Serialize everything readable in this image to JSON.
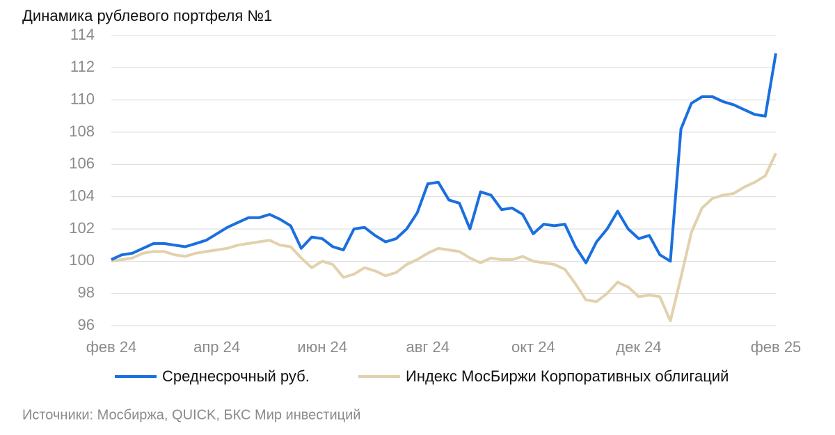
{
  "chart_data": {
    "type": "line",
    "title": "Динамика рублевого портфеля №1",
    "source": "Источники: Мосбиржа, QUICK, БКС Мир инвестиций",
    "categories": [
      "фев 24",
      null,
      null,
      null,
      null,
      null,
      null,
      null,
      null,
      null,
      "апр 24",
      null,
      null,
      null,
      null,
      null,
      null,
      null,
      null,
      null,
      "июн 24",
      null,
      null,
      null,
      null,
      null,
      null,
      null,
      null,
      null,
      "авг 24",
      null,
      null,
      null,
      null,
      null,
      null,
      null,
      null,
      null,
      "окт 24",
      null,
      null,
      null,
      null,
      null,
      null,
      null,
      null,
      null,
      "дек 24",
      null,
      null,
      null,
      null,
      null,
      null,
      null,
      null,
      null,
      null,
      null,
      null,
      "фев 25"
    ],
    "series": [
      {
        "name": "Среднесрочный руб.",
        "color": "#1a6fdf",
        "values": [
          100.1,
          100.4,
          100.5,
          100.8,
          101.1,
          101.1,
          101.0,
          100.9,
          101.1,
          101.3,
          101.7,
          102.1,
          102.4,
          102.7,
          102.7,
          102.9,
          102.6,
          102.2,
          100.8,
          101.5,
          101.4,
          100.9,
          100.7,
          102.0,
          102.1,
          101.6,
          101.2,
          101.4,
          102.0,
          103.0,
          104.8,
          104.9,
          103.8,
          103.6,
          102.0,
          104.3,
          104.1,
          103.2,
          103.3,
          102.9,
          101.7,
          102.3,
          102.2,
          102.3,
          100.9,
          99.9,
          101.2,
          102.0,
          103.1,
          102.0,
          101.4,
          101.6,
          100.4,
          100.0,
          108.2,
          109.8,
          110.2,
          110.2,
          109.9,
          109.7,
          109.4,
          109.1,
          109.0,
          112.9
        ]
      },
      {
        "name": "Индекс МосБиржи Корпоративных облигаций",
        "color": "#e2d1ad",
        "values": [
          100.0,
          100.1,
          100.2,
          100.5,
          100.6,
          100.6,
          100.4,
          100.3,
          100.5,
          100.6,
          100.7,
          100.8,
          101.0,
          101.1,
          101.2,
          101.3,
          101.0,
          100.9,
          100.2,
          99.6,
          100.0,
          99.8,
          99.0,
          99.2,
          99.6,
          99.4,
          99.1,
          99.3,
          99.8,
          100.1,
          100.5,
          100.8,
          100.7,
          100.6,
          100.2,
          99.9,
          100.2,
          100.1,
          100.1,
          100.3,
          100.0,
          99.9,
          99.8,
          99.5,
          98.6,
          97.6,
          97.5,
          98.0,
          98.7,
          98.4,
          97.8,
          97.9,
          97.8,
          96.3,
          99.0,
          101.8,
          103.3,
          103.9,
          104.1,
          104.2,
          104.6,
          104.9,
          105.3,
          106.7
        ]
      }
    ],
    "ylim": [
      96,
      114
    ],
    "yticks": [
      96,
      98,
      100,
      102,
      104,
      106,
      108,
      110,
      112,
      114
    ],
    "grid": true
  }
}
